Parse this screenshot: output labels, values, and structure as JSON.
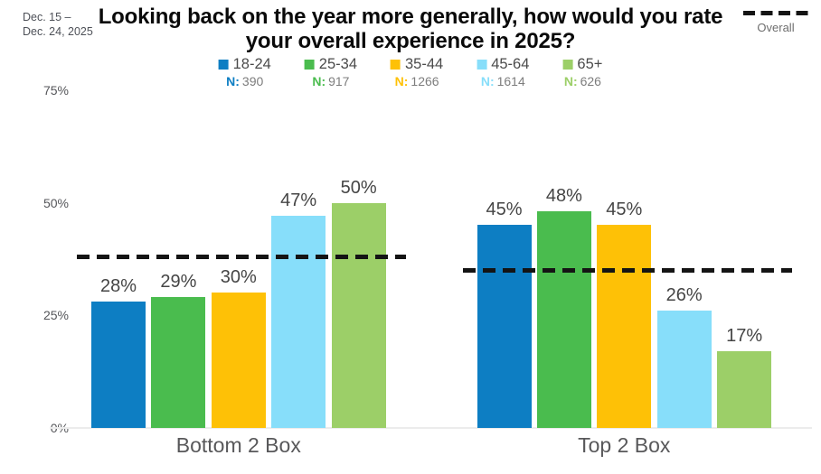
{
  "header": {
    "date_range": [
      "Dec. 15 –",
      "Dec. 24, 2025"
    ],
    "title": "Looking back on the year more generally, how would you rate your overall experience in 2025?",
    "overall_label": "Overall"
  },
  "legend_n_prefix": "N:",
  "colors": {
    "age_18_24": "#0d7ec3",
    "age_25_34": "#4abc4e",
    "age_35_44": "#fec106",
    "age_45_64": "#87defa",
    "age_65_plus": "#9ccf68",
    "overall_line": "#141414",
    "axis_text": "#55565a",
    "value_text": "#454545"
  },
  "chart_data": {
    "type": "bar",
    "title": "Looking back on the year more generally, how would you rate your overall experience in 2025?",
    "categories": [
      "Bottom 2 Box",
      "Top 2 Box"
    ],
    "series": [
      {
        "name": "18-24",
        "n": "390",
        "color": "#0d7ec3",
        "values": [
          28,
          45
        ]
      },
      {
        "name": "25-34",
        "n": "917",
        "color": "#4abc4e",
        "values": [
          29,
          48
        ]
      },
      {
        "name": "35-44",
        "n": "1266",
        "color": "#fec106",
        "values": [
          30,
          45
        ]
      },
      {
        "name": "45-64",
        "n": "1614",
        "color": "#87defa",
        "values": [
          47,
          26
        ]
      },
      {
        "name": "65+",
        "n": "626",
        "color": "#9ccf68",
        "values": [
          50,
          17
        ]
      }
    ],
    "overall_line_values": [
      38,
      35
    ],
    "overall_line_label": "Overall",
    "value_suffix": "%",
    "y_axis": {
      "ticks": [
        "75%",
        "50%",
        "25%",
        "0%"
      ],
      "tick_values": [
        75,
        50,
        25,
        0
      ]
    },
    "ylim": [
      0,
      75
    ],
    "grid": false,
    "legend_position": "top"
  }
}
